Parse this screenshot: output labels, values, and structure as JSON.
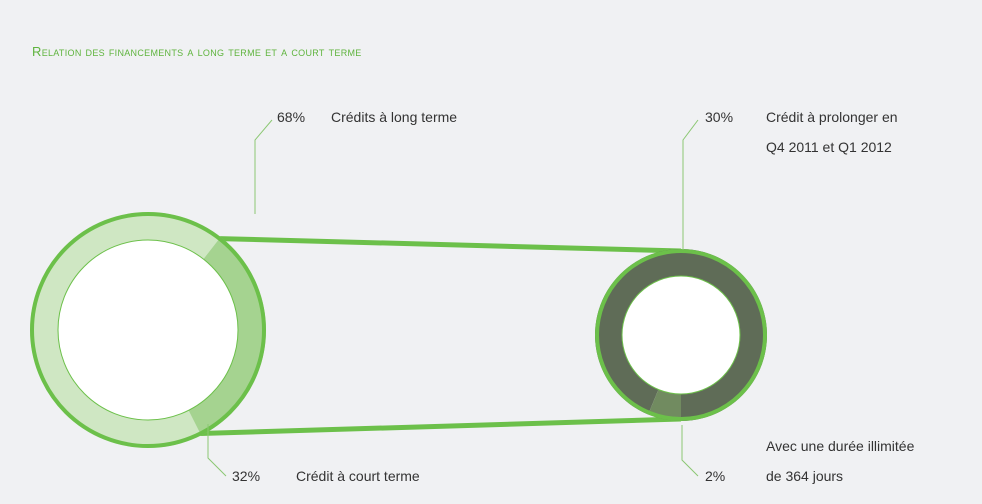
{
  "chart_data": {
    "type": "bar-of-pie",
    "title": "Relation des financements a long terme et a court terme",
    "pie": {
      "categories": [
        "Crédits à long terme",
        "Crédit à court terme"
      ],
      "values": [
        68,
        32
      ],
      "value_labels": [
        "68%",
        "32%"
      ],
      "colors": [
        "#cfe7c3",
        "#a5d390"
      ]
    },
    "detail": {
      "categories": [
        "Crédit à prolonger en\nQ4 2011 et Q1 2012",
        "Avec une durée illimitée\nde 364 jours"
      ],
      "values": [
        30,
        2
      ],
      "value_labels": [
        "30%",
        "2%"
      ],
      "colors": [
        "#5f6c57",
        "#718b60"
      ]
    },
    "outline_color": "#6cc04a"
  }
}
